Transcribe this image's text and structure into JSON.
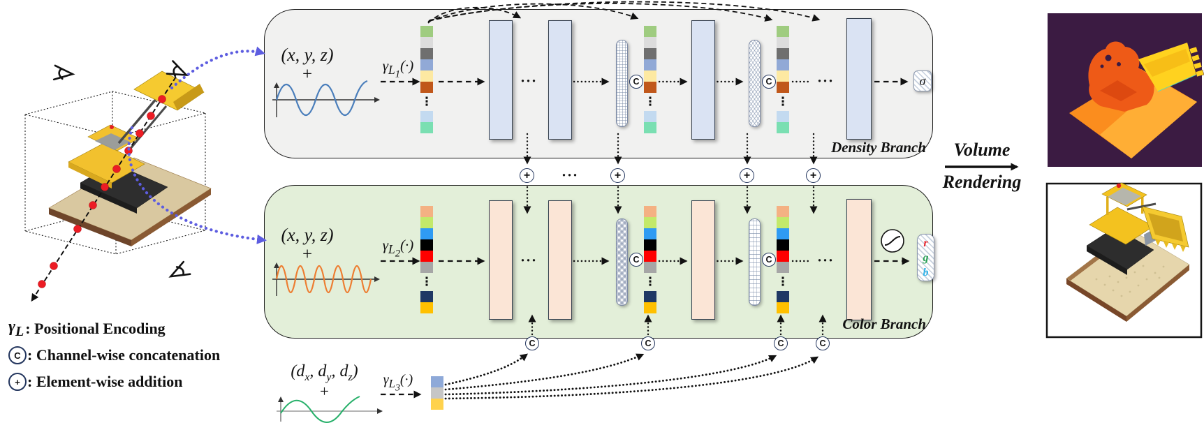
{
  "legend": {
    "items": [
      {
        "type": "math",
        "symbol": "γ_{L}",
        "label": " : Positional Encoding"
      },
      {
        "type": "circle",
        "symbol": "C",
        "label": ": Channel-wise concatenation"
      },
      {
        "type": "circle",
        "symbol": "+",
        "label": ": Element-wise addition"
      }
    ]
  },
  "density_branch": {
    "label": "Density Branch",
    "coords": "(x, y, z)",
    "plus": "+",
    "encoding": "γ_{L_{1}}(·)",
    "output_symbol": "σ",
    "vector_top": [
      "#9fcc80",
      "#dcdcdc",
      "#6f6f6f",
      "#91a9d6",
      "#fde9a2",
      "#c0571a"
    ],
    "vector_bottom": [
      "#c3daf0",
      "#7adfb2"
    ]
  },
  "color_branch": {
    "label": "Color Branch",
    "coords": "(x, y, z)",
    "plus": "+",
    "encoding": "γ_{L_{2}}(·)",
    "output_letters": [
      {
        "ch": "r",
        "color": "#e8262d"
      },
      {
        "ch": "g",
        "color": "#2aa155"
      },
      {
        "ch": "b",
        "color": "#2fb3e8"
      }
    ],
    "vector_top": [
      "#f4b183",
      "#c3e96a",
      "#2f9bf3",
      "#000000",
      "#fe0000",
      "#a6a6a6"
    ],
    "vector_bottom": [
      "#1f3864",
      "#ffc000"
    ]
  },
  "direction_input": {
    "coords": "(d_{x}, d_{y}, d_{z})",
    "plus": "+",
    "encoding": "γ_{L_{3}}(·)",
    "vector": [
      "#8ea9d8",
      "#c6c6c6",
      "#ffd24d"
    ]
  },
  "connectors": {
    "concat_symbol": "C",
    "add_symbol": "+",
    "ellipsis": "···",
    "vdots": "⋮"
  },
  "volume_rendering": {
    "line1": "Volume",
    "line2": "Rendering"
  },
  "colors": {
    "density_box": "#f1f1f0",
    "color_box": "#e3efd9",
    "density_mlp": "#dae3f3",
    "color_mlp": "#fbe5d6",
    "pointer_arrow": "#5d5de0",
    "density_wave": "#4a7ebb",
    "color_wave": "#ed7d31",
    "direction_wave": "#27b06a",
    "ray_sample": "#ec1c24"
  }
}
